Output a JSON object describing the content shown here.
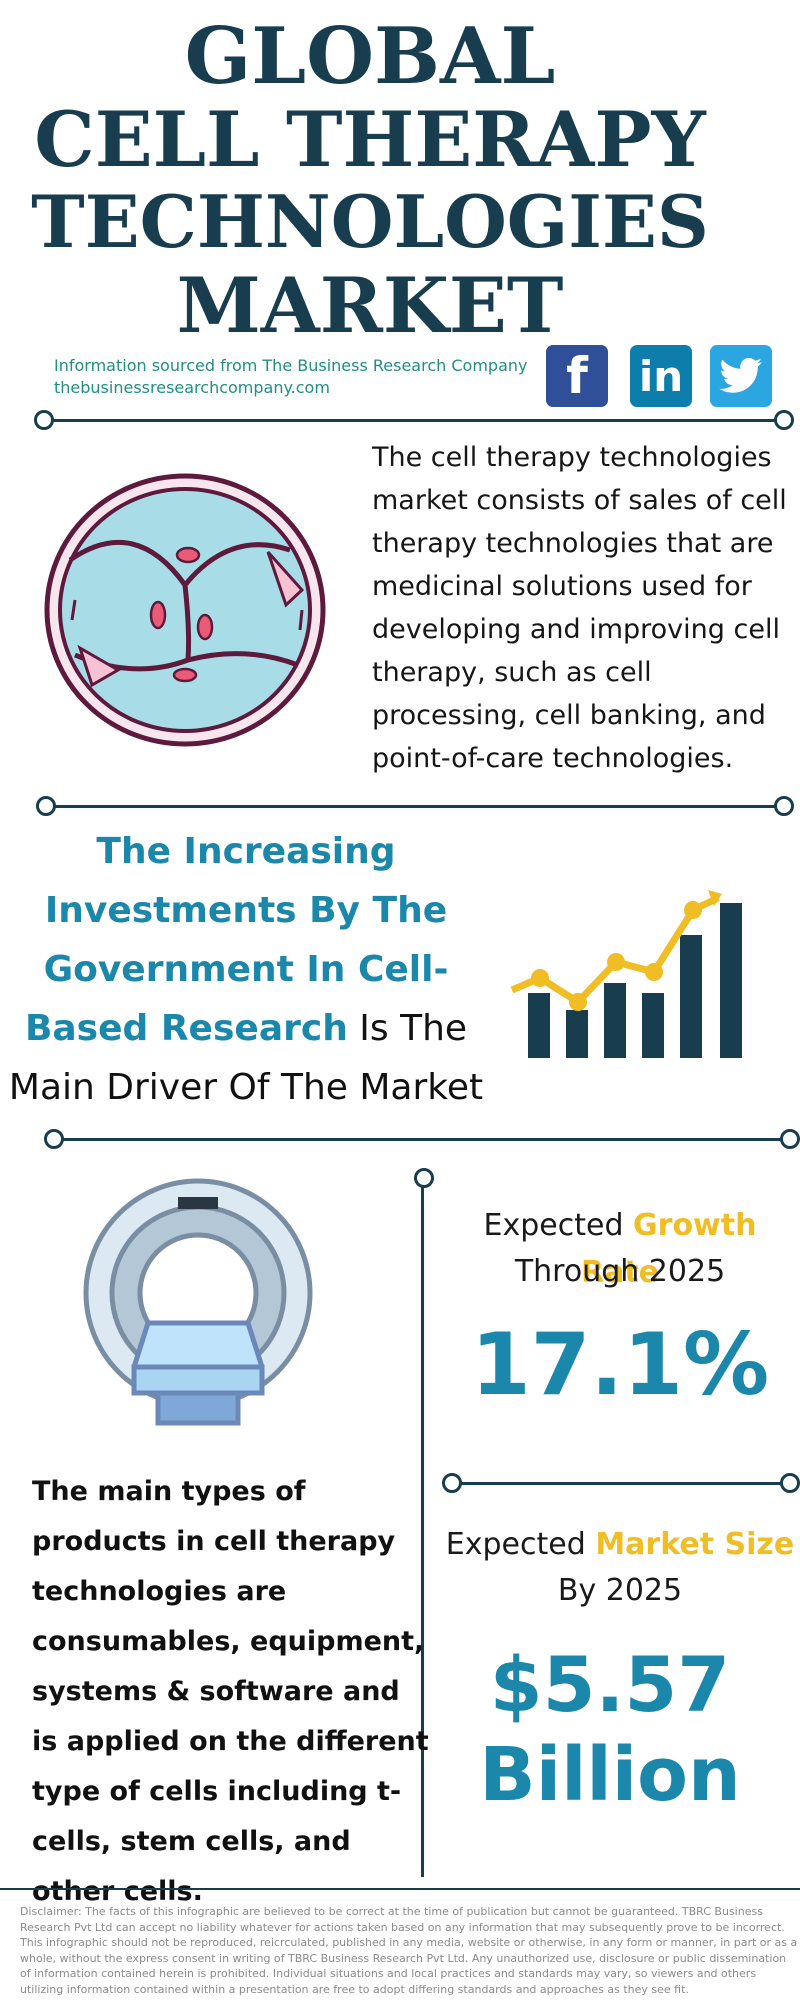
{
  "header": {
    "title_lines": [
      "GLOBAL",
      "CELL THERAPY",
      "TECHNOLOGIES",
      "MARKET"
    ],
    "source_line": "Information sourced from The Business Research Company",
    "source_url": "thebusinessresearchcompany.com"
  },
  "social": {
    "facebook": {
      "glyph": "f",
      "color": "#2f4f98"
    },
    "linkedin": {
      "glyph": "in",
      "color": "#0d7dab"
    },
    "twitter": {
      "icon": "bird-icon",
      "color": "#2ca6e0"
    }
  },
  "intro": {
    "text": "The cell therapy technologies market consists of sales of cell therapy technologies that are medicinal solutions used for developing and improving cell therapy, such as cell processing, cell banking, and point-of-care technologies."
  },
  "driver": {
    "highlight": "The Increasing Investments By The Government In Cell-Based Research",
    "rest": " Is The Main Driver Of The Market"
  },
  "growth": {
    "label_prefix": "Expected ",
    "label_highlight": "Growth Rate",
    "label_suffix": "Through 2025",
    "value": "17.1%"
  },
  "market_size": {
    "label_prefix": "Expected ",
    "label_highlight": "Market Size",
    "label_suffix": "By 2025",
    "value_line1": "$5.57",
    "value_line2": "Billion"
  },
  "product_types": {
    "text": "The main types of products in cell therapy technologies are consumables, equipment, systems & software and is applied on the different type of cells including t-cells, stem cells, and other cells."
  },
  "disclaimer": "Disclaimer: The facts of this infographic are believed to be correct at the time of publication but cannot be guaranteed. TBRC Business Research Pvt Ltd can accept no liability whatever for actions taken based on any information that may subsequently prove to be incorrect. This infographic should not be reproduced, reicrculated, published in any media, website or otherwise, in any form or manner, in part or as a whole, without the express consent in writing of TBRC Business Research Pvt Ltd. Any unauthorized use, disclosure or public dissemination of information contained herein is prohibited. Individual situations and local practices and standards may vary, so viewers and others utilizing information contained within a presentation are free to adopt differing standards and approaches as they see fit.",
  "colors": {
    "navy": "#173d4f",
    "accent_blue": "#1a87ab",
    "accent_yellow": "#f0bd25",
    "teal": "#1f8f86"
  }
}
